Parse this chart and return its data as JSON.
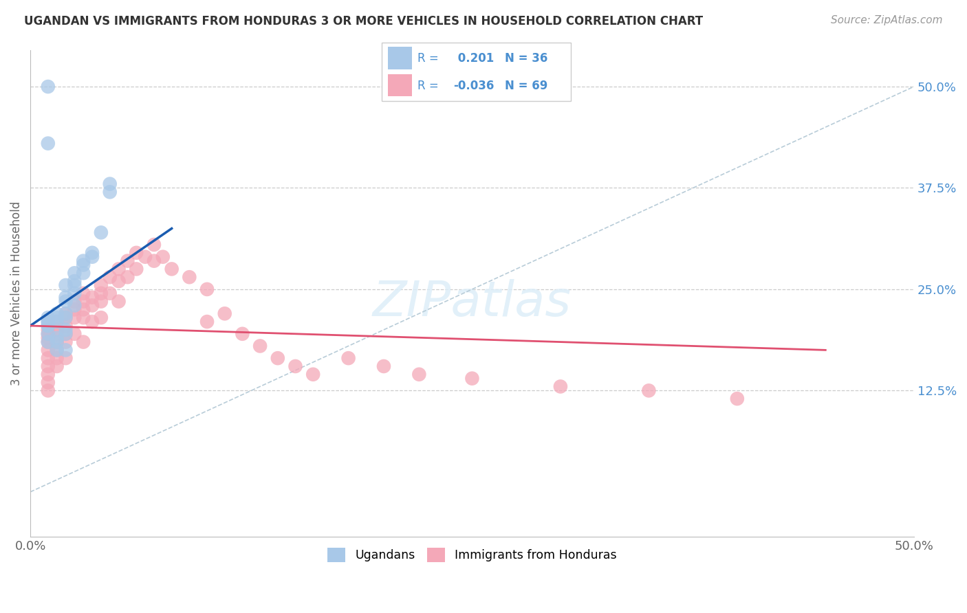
{
  "title": "UGANDAN VS IMMIGRANTS FROM HONDURAS 3 OR MORE VEHICLES IN HOUSEHOLD CORRELATION CHART",
  "source": "Source: ZipAtlas.com",
  "ylabel": "3 or more Vehicles in Household",
  "y_tick_labels": [
    "12.5%",
    "25.0%",
    "37.5%",
    "50.0%"
  ],
  "y_tick_values": [
    0.125,
    0.25,
    0.375,
    0.5
  ],
  "xmin": 0.0,
  "xmax": 0.5,
  "ymin": -0.055,
  "ymax": 0.545,
  "R_ugandan": 0.201,
  "N_ugandan": 36,
  "R_honduran": -0.036,
  "N_honduran": 69,
  "color_ugandan": "#a8c8e8",
  "color_honduran": "#f4a8b8",
  "line_color_ugandan": "#1a5cb0",
  "line_color_honduran": "#e05070",
  "line_color_diag": "#b8ccd8",
  "ugandan_x": [
    0.01,
    0.01,
    0.01,
    0.01,
    0.01,
    0.01,
    0.01,
    0.015,
    0.015,
    0.015,
    0.015,
    0.015,
    0.015,
    0.02,
    0.02,
    0.02,
    0.02,
    0.02,
    0.02,
    0.02,
    0.02,
    0.025,
    0.025,
    0.025,
    0.025,
    0.025,
    0.03,
    0.03,
    0.03,
    0.035,
    0.035,
    0.04,
    0.045,
    0.045,
    0.01,
    0.01
  ],
  "ugandan_y": [
    0.205,
    0.21,
    0.215,
    0.21,
    0.205,
    0.195,
    0.185,
    0.22,
    0.215,
    0.21,
    0.19,
    0.185,
    0.175,
    0.255,
    0.24,
    0.235,
    0.22,
    0.215,
    0.2,
    0.195,
    0.175,
    0.27,
    0.26,
    0.255,
    0.245,
    0.23,
    0.285,
    0.28,
    0.27,
    0.295,
    0.29,
    0.32,
    0.38,
    0.37,
    0.43,
    0.5
  ],
  "honduran_x": [
    0.01,
    0.01,
    0.01,
    0.01,
    0.01,
    0.01,
    0.01,
    0.01,
    0.01,
    0.01,
    0.015,
    0.015,
    0.015,
    0.015,
    0.015,
    0.015,
    0.015,
    0.02,
    0.02,
    0.02,
    0.02,
    0.02,
    0.02,
    0.025,
    0.025,
    0.025,
    0.025,
    0.03,
    0.03,
    0.03,
    0.03,
    0.03,
    0.035,
    0.035,
    0.035,
    0.04,
    0.04,
    0.04,
    0.04,
    0.045,
    0.045,
    0.05,
    0.05,
    0.05,
    0.055,
    0.055,
    0.06,
    0.06,
    0.065,
    0.07,
    0.07,
    0.075,
    0.08,
    0.09,
    0.1,
    0.1,
    0.11,
    0.12,
    0.13,
    0.14,
    0.15,
    0.16,
    0.18,
    0.2,
    0.22,
    0.25,
    0.3,
    0.35,
    0.4
  ],
  "honduran_y": [
    0.2,
    0.195,
    0.19,
    0.185,
    0.175,
    0.165,
    0.155,
    0.145,
    0.135,
    0.125,
    0.21,
    0.2,
    0.195,
    0.185,
    0.175,
    0.165,
    0.155,
    0.22,
    0.215,
    0.205,
    0.195,
    0.185,
    0.165,
    0.235,
    0.225,
    0.215,
    0.195,
    0.245,
    0.235,
    0.225,
    0.215,
    0.185,
    0.24,
    0.23,
    0.21,
    0.255,
    0.245,
    0.235,
    0.215,
    0.265,
    0.245,
    0.275,
    0.26,
    0.235,
    0.285,
    0.265,
    0.295,
    0.275,
    0.29,
    0.305,
    0.285,
    0.29,
    0.275,
    0.265,
    0.25,
    0.21,
    0.22,
    0.195,
    0.18,
    0.165,
    0.155,
    0.145,
    0.165,
    0.155,
    0.145,
    0.14,
    0.13,
    0.125,
    0.115
  ],
  "blue_line_x0": 0.0,
  "blue_line_y0": 0.205,
  "blue_line_x1": 0.08,
  "blue_line_y1": 0.325,
  "pink_line_x0": 0.0,
  "pink_line_y0": 0.205,
  "pink_line_x1": 0.45,
  "pink_line_y1": 0.175
}
